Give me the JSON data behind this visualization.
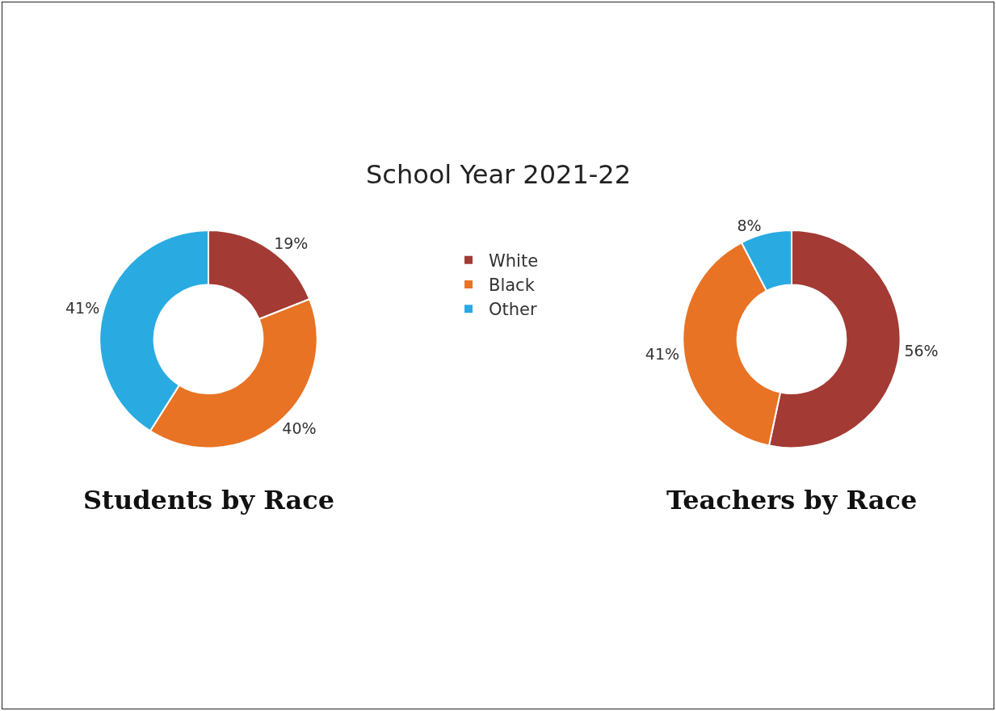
{
  "chart_data": [
    {
      "type": "donut",
      "title": "Students by Race",
      "annotations": [
        "School Year 2021-22"
      ],
      "categories": [
        "White",
        "Black",
        "Other"
      ],
      "values": [
        19,
        40,
        41
      ],
      "value_labels": [
        "19%",
        "40%",
        "41%"
      ],
      "colors": [
        "#a33a34",
        "#e87324",
        "#29abe2"
      ],
      "legend": "right"
    },
    {
      "type": "donut",
      "title": "Teachers by Race",
      "categories": [
        null,
        null,
        null
      ],
      "values": [
        56,
        41,
        8
      ],
      "value_labels": [
        "56%",
        "41%",
        "8%"
      ],
      "colors": [
        "#a33a34",
        "#e87324",
        "#29abe2"
      ]
    }
  ]
}
